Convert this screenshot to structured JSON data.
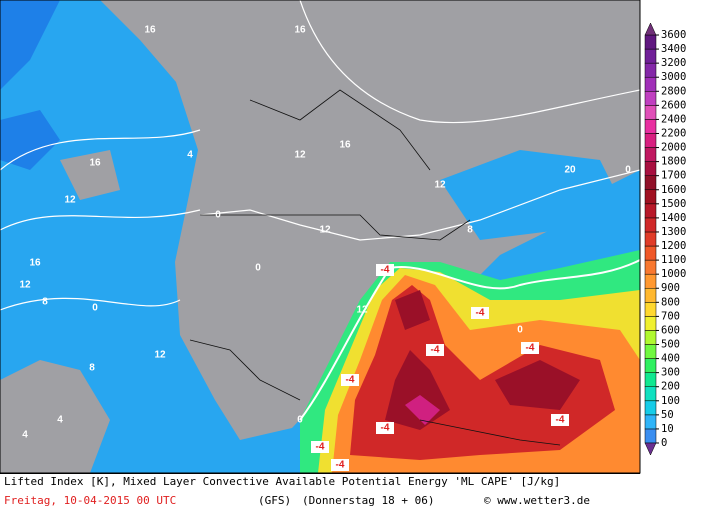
{
  "legend": {
    "levels": [
      0,
      10,
      50,
      100,
      200,
      300,
      400,
      500,
      600,
      700,
      800,
      900,
      1000,
      1100,
      1200,
      1300,
      1400,
      1500,
      1600,
      1700,
      1800,
      2000,
      2200,
      2400,
      2600,
      2800,
      3000,
      3200,
      3400,
      3600
    ],
    "colors": [
      "#3a8ef0",
      "#2fb4f8",
      "#16cce8",
      "#10e0c0",
      "#10e890",
      "#30f060",
      "#70f840",
      "#b0f830",
      "#f0f030",
      "#ffd830",
      "#ffb830",
      "#ff9830",
      "#f87830",
      "#f05828",
      "#e03c28",
      "#d02828",
      "#b81828",
      "#a01020",
      "#901028",
      "#a81040",
      "#c01860",
      "#d82080",
      "#e830a0",
      "#e050b8",
      "#c040c0",
      "#a030b8",
      "#8428a8",
      "#702098",
      "#601880"
    ],
    "below_color": "#6a3090",
    "above_color": "#703078"
  },
  "map": {
    "labels": [
      "16",
      "12",
      "16",
      "12",
      "8",
      "0",
      "12",
      "8",
      "4",
      "4",
      "12",
      "16",
      "12",
      "8",
      "12",
      "4",
      "0",
      "0",
      "12",
      "0",
      "0",
      "0",
      "20",
      "-4",
      "-4",
      "-4",
      "-4",
      "-4",
      "-4",
      "-4",
      "-4",
      "-4",
      "16",
      "16"
    ]
  },
  "footer": {
    "line1": "Lifted Index [K], Mixed Layer Convective Available Potential Energy 'ML CAPE' [J/kg]",
    "date": "Freitag, 10-04-2015  00 UTC",
    "model": "(GFS)",
    "run": "(Donnerstag 18 + 06)",
    "credit": "© www.wetter3.de"
  }
}
